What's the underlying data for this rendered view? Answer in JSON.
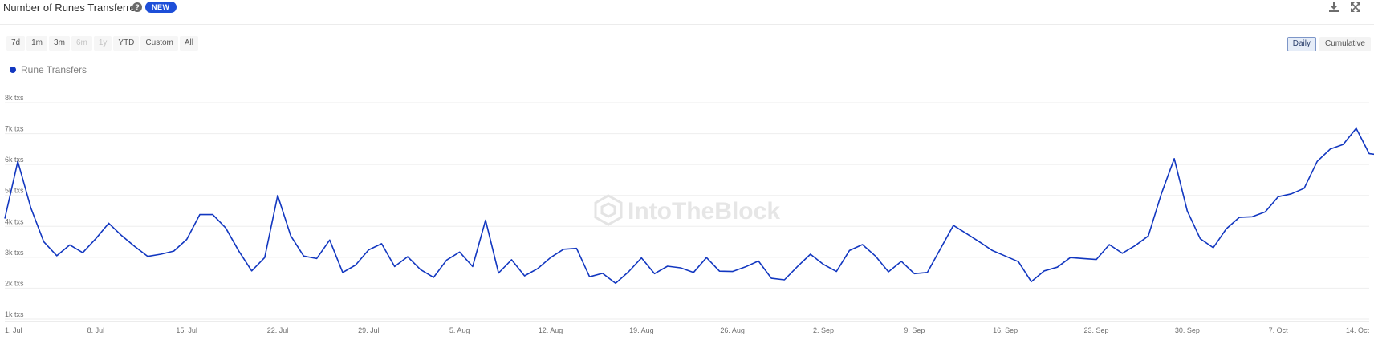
{
  "header": {
    "title": "Number of Runes Transferred",
    "badge": "NEW",
    "help_icon": "question-circle-icon",
    "download_icon": "download-icon",
    "fullscreen_icon": "expand-icon"
  },
  "range_buttons": [
    {
      "label": "7d",
      "enabled": true
    },
    {
      "label": "1m",
      "enabled": true
    },
    {
      "label": "3m",
      "enabled": true
    },
    {
      "label": "6m",
      "enabled": false
    },
    {
      "label": "1y",
      "enabled": false
    },
    {
      "label": "YTD",
      "enabled": true
    },
    {
      "label": "Custom",
      "enabled": true
    },
    {
      "label": "All",
      "enabled": true
    }
  ],
  "mode_buttons": [
    {
      "label": "Daily",
      "active": true
    },
    {
      "label": "Cumulative",
      "active": false
    }
  ],
  "watermark": "IntoTheBlock",
  "colors": {
    "series": "#1237c0",
    "badge": "#1d4ed8"
  },
  "chart_data": {
    "type": "line",
    "title": "Number of Runes Transferred",
    "legend": {
      "placement": "top-left"
    },
    "grid": true,
    "ylim": [
      1000,
      8000
    ],
    "y_ticks": [
      {
        "value": 1000,
        "label": "1k txs"
      },
      {
        "value": 2000,
        "label": "2k txs"
      },
      {
        "value": 3000,
        "label": "3k txs"
      },
      {
        "value": 4000,
        "label": "4k txs"
      },
      {
        "value": 5000,
        "label": "5k txs"
      },
      {
        "value": 6000,
        "label": "6k txs"
      },
      {
        "value": 7000,
        "label": "7k txs"
      },
      {
        "value": 8000,
        "label": "8k txs"
      }
    ],
    "x_range": [
      "2024-07-01",
      "2024-10-14"
    ],
    "x_ticks": [
      {
        "date": "2024-07-01",
        "label": "1. Jul"
      },
      {
        "date": "2024-07-08",
        "label": "8. Jul"
      },
      {
        "date": "2024-07-15",
        "label": "15. Jul"
      },
      {
        "date": "2024-07-22",
        "label": "22. Jul"
      },
      {
        "date": "2024-07-29",
        "label": "29. Jul"
      },
      {
        "date": "2024-08-05",
        "label": "5. Aug"
      },
      {
        "date": "2024-08-12",
        "label": "12. Aug"
      },
      {
        "date": "2024-08-19",
        "label": "19. Aug"
      },
      {
        "date": "2024-08-26",
        "label": "26. Aug"
      },
      {
        "date": "2024-09-02",
        "label": "2. Sep"
      },
      {
        "date": "2024-09-09",
        "label": "9. Sep"
      },
      {
        "date": "2024-09-16",
        "label": "16. Sep"
      },
      {
        "date": "2024-09-23",
        "label": "23. Sep"
      },
      {
        "date": "2024-09-30",
        "label": "30. Sep"
      },
      {
        "date": "2024-10-07",
        "label": "7. Oct"
      },
      {
        "date": "2024-10-14",
        "label": "14. Oct"
      }
    ],
    "series": [
      {
        "name": "Rune Transfers",
        "x_start": "2024-07-01",
        "values": [
          4250,
          6100,
          4600,
          3500,
          3050,
          3400,
          3150,
          3600,
          4100,
          3700,
          3350,
          3030,
          3100,
          3200,
          3580,
          4380,
          4380,
          3950,
          3210,
          2560,
          2990,
          5000,
          3700,
          3040,
          2960,
          3560,
          2510,
          2750,
          3240,
          3440,
          2700,
          3020,
          2600,
          2350,
          2910,
          3170,
          2700,
          4200,
          2490,
          2920,
          2400,
          2630,
          2990,
          3260,
          3290,
          2370,
          2480,
          2160,
          2530,
          2980,
          2470,
          2710,
          2660,
          2510,
          2990,
          2550,
          2540,
          2690,
          2880,
          2320,
          2270,
          2700,
          3100,
          2770,
          2540,
          3220,
          3410,
          3040,
          2530,
          2870,
          2470,
          2510,
          3270,
          4030,
          3770,
          3500,
          3220,
          3040,
          2860,
          2210,
          2560,
          2680,
          2990,
          2960,
          2930,
          3410,
          3130,
          3380,
          3690,
          5050,
          6190,
          4500,
          3600,
          3310,
          3920,
          4290,
          4310,
          4470,
          4960,
          5050,
          5230,
          6100,
          6500,
          6650,
          7170,
          6350,
          6300
        ]
      }
    ]
  }
}
